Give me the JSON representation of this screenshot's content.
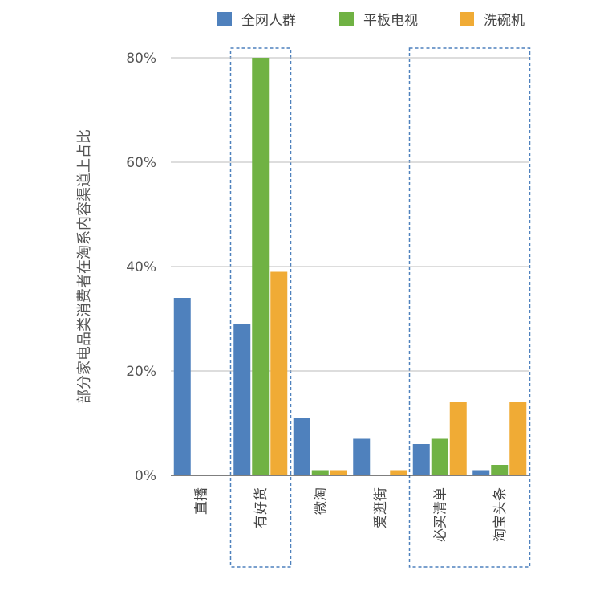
{
  "chart_data": {
    "type": "bar",
    "title": "",
    "xlabel": "",
    "ylabel": "部分家电品类消费者在淘系内容渠道上占比",
    "ylim": [
      0,
      80
    ],
    "y_ticks": [
      0,
      20,
      40,
      60,
      80
    ],
    "y_tick_labels": [
      "0%",
      "20%",
      "40%",
      "60%",
      "80%"
    ],
    "grid": true,
    "legend_position": "top-right",
    "categories": [
      "直播",
      "有好货",
      "微淘",
      "爱逛街",
      "必买清单",
      "淘宝头条"
    ],
    "series": [
      {
        "name": "全网人群",
        "color": "#4f81bd",
        "values": [
          34,
          29,
          11,
          7,
          6,
          1
        ]
      },
      {
        "name": "平板电视",
        "color": "#70b244",
        "values": [
          0,
          80,
          1,
          0,
          7,
          2
        ]
      },
      {
        "name": "洗碗机",
        "color": "#f0ab35",
        "values": [
          0,
          39,
          1,
          1,
          14,
          14
        ]
      }
    ],
    "highlight_boxes": [
      {
        "categories": [
          "有好货"
        ],
        "style": "dashed",
        "color": "#4f81bd"
      },
      {
        "categories": [
          "必买清单",
          "淘宝头条"
        ],
        "style": "dashed",
        "color": "#4f81bd"
      }
    ]
  }
}
